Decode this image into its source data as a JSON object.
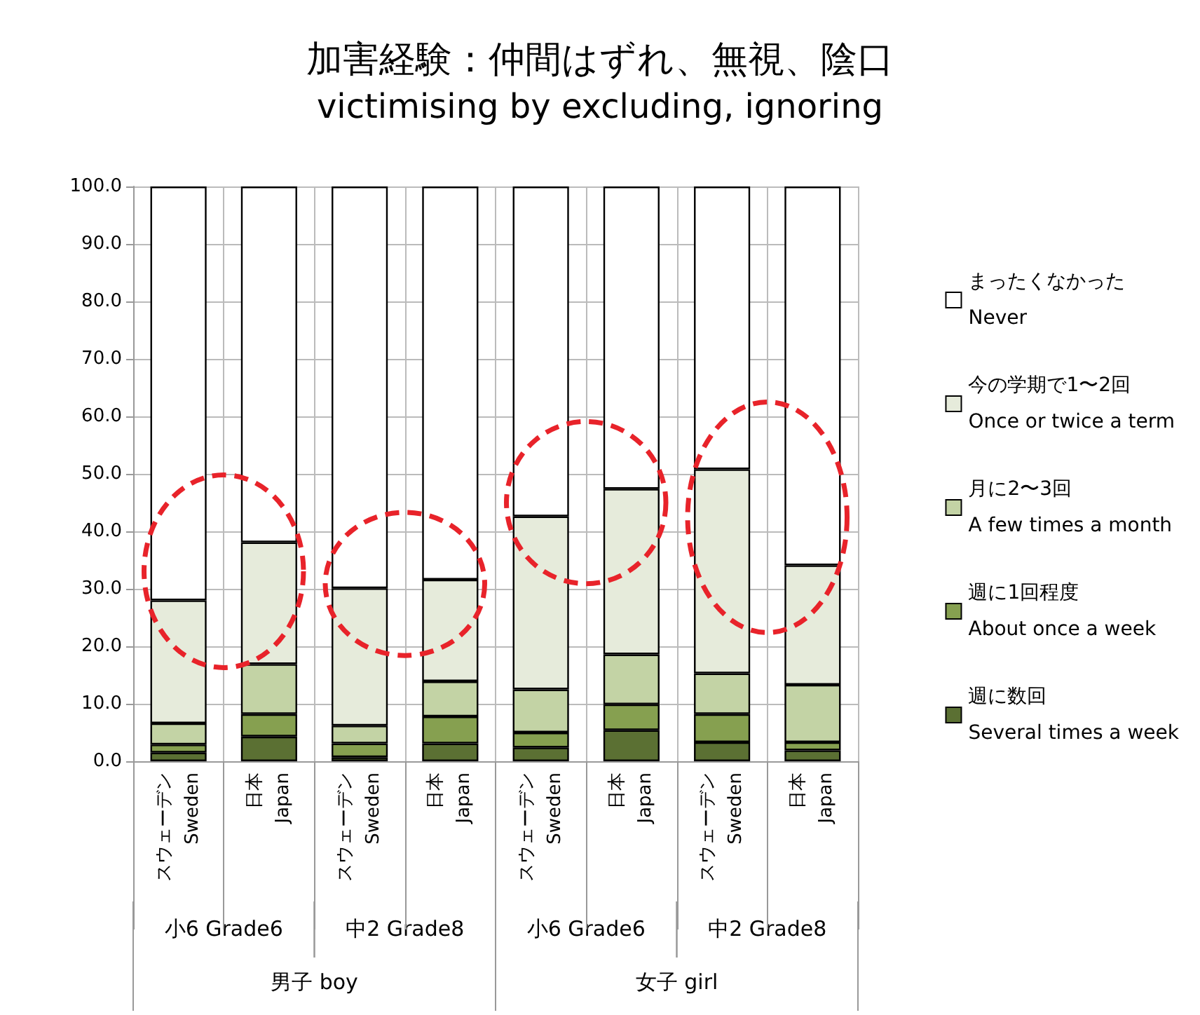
{
  "chart_data": {
    "type": "bar",
    "title": "加害経験：仲間はずれ、無視、陰口",
    "subtitle": "victimising by excluding, ignoring",
    "stacked": true,
    "grid": true,
    "legend": "right",
    "categories": [
      "スウェーデン\nSweden",
      "日本\nJapan",
      "スウェーデン\nSweden",
      "日本\nJapan",
      "スウェーデン\nSweden",
      "日本\nJapan",
      "スウェーデン\nSweden",
      "日本\nJapan"
    ],
    "series": [
      {
        "name": "週に数回\nSeveral times a week",
        "color": "#5b7033",
        "values": [
          1.5,
          4.3,
          0.7,
          3.1,
          2.4,
          5.4,
          3.3,
          1.9
        ]
      },
      {
        "name": "週に1回程度\nAbout once a week",
        "color": "#86a050",
        "values": [
          1.4,
          3.9,
          2.4,
          4.7,
          2.6,
          4.5,
          4.9,
          1.4
        ]
      },
      {
        "name": "月に2〜3回\nA few times a month",
        "color": "#c3d3a5",
        "values": [
          3.7,
          8.7,
          3.1,
          6.1,
          7.5,
          8.7,
          7.1,
          10.0
        ]
      },
      {
        "name": "今の学期で1〜2回\nOnce or twice a term",
        "color": "#e6ebdb",
        "values": [
          21.4,
          21.2,
          23.9,
          17.7,
          30.1,
          28.8,
          35.5,
          20.8
        ]
      },
      {
        "name": "まったくなかった\nNever",
        "color": "#ffffff",
        "values": [
          72.0,
          61.9,
          69.9,
          68.4,
          57.4,
          52.6,
          49.2,
          65.9
        ]
      }
    ],
    "ylim": [
      0,
      100
    ],
    "yticks": [
      {
        "value": 0,
        "label": "0.0"
      },
      {
        "value": 10,
        "label": "10.0"
      },
      {
        "value": 20,
        "label": "20.0"
      },
      {
        "value": 30,
        "label": "30.0"
      },
      {
        "value": 40,
        "label": "40.0"
      },
      {
        "value": 50,
        "label": "50.0"
      },
      {
        "value": 60,
        "label": "60.0"
      },
      {
        "value": 70,
        "label": "70.0"
      },
      {
        "value": 80,
        "label": "80.0"
      },
      {
        "value": 90,
        "label": "90.0"
      },
      {
        "value": 100,
        "label": "100.0"
      }
    ],
    "annotations": [
      "小6 Grade6",
      "中2 Grade8",
      "小6 Grade6",
      "中2 Grade8",
      "男子 boy",
      "女子 girl"
    ]
  }
}
